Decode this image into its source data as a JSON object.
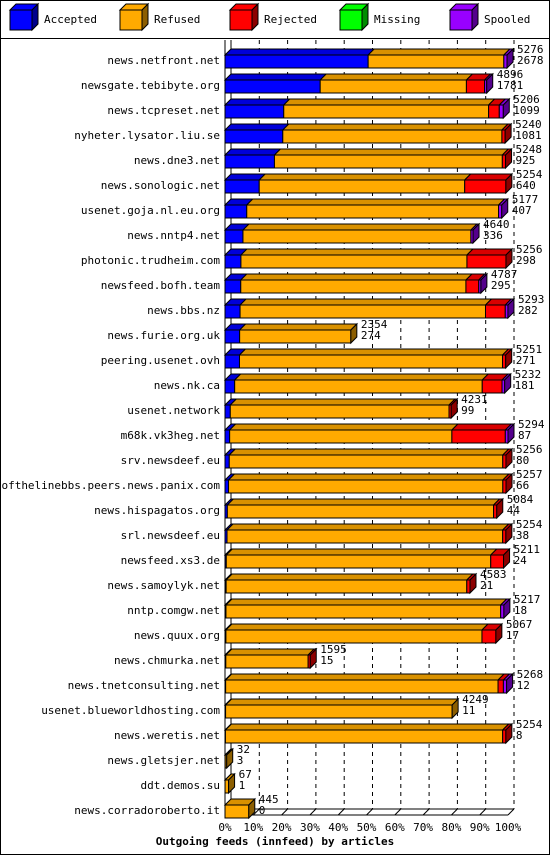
{
  "chart_data": {
    "type": "bar",
    "orientation": "horizontal",
    "stacked": true,
    "x_label": "Outgoing feeds (innfeed) by articles",
    "categories": [
      "news.netfront.net",
      "newsgate.tebibyte.org",
      "news.tcpreset.net",
      "nyheter.lysator.liu.se",
      "news.dne3.net",
      "news.sonologic.net",
      "usenet.goja.nl.eu.org",
      "news.nntp4.net",
      "photonic.trudheim.com",
      "newsfeed.bofh.team",
      "news.bbs.nz",
      "news.furie.org.uk",
      "peering.usenet.ovh",
      "news.nk.ca",
      "usenet.network",
      "m68k.vk3heg.net",
      "srv.newsdeef.eu",
      "endofthelinebbs.peers.news.panix.com",
      "news.hispagatos.org",
      "srl.newsdeef.eu",
      "newsfeed.xs3.de",
      "news.samoylyk.net",
      "nntp.comgw.net",
      "news.quux.org",
      "news.chmurka.net",
      "news.tnetconsulting.net",
      "usenet.blueworldhosting.com",
      "news.weretis.net",
      "news.gletsjer.net",
      "ddt.demos.su",
      "news.corradoroberto.it"
    ],
    "totals": [
      5276,
      4896,
      5206,
      5240,
      5248,
      5254,
      5177,
      4640,
      5256,
      4787,
      5293,
      2354,
      5251,
      5232,
      4231,
      5294,
      5256,
      5257,
      5084,
      5254,
      5211,
      4583,
      5217,
      5067,
      1595,
      5268,
      4249,
      5254,
      32,
      67,
      445
    ],
    "series": [
      {
        "name": "Accepted",
        "color": "#0000ff",
        "values": [
          2678,
          1781,
          1099,
          1081,
          925,
          640,
          407,
          336,
          298,
          295,
          282,
          274,
          271,
          181,
          99,
          87,
          80,
          66,
          44,
          38,
          24,
          21,
          18,
          17,
          15,
          12,
          11,
          8,
          3,
          1,
          0
        ]
      },
      {
        "name": "Refused",
        "color": "#ffaa00",
        "values": [
          2538,
          2735,
          3832,
          4099,
          4263,
          3844,
          4710,
          4264,
          4228,
          4212,
          4591,
          2080,
          4920,
          4631,
          4092,
          4157,
          5116,
          5131,
          4980,
          5156,
          4947,
          4502,
          5139,
          4790,
          1540,
          5096,
          4238,
          5186,
          29,
          66,
          445
        ]
      },
      {
        "name": "Rejected",
        "color": "#ff0000",
        "values": [
          0,
          340,
          200,
          60,
          60,
          770,
          0,
          0,
          730,
          240,
          370,
          0,
          60,
          370,
          40,
          1000,
          60,
          60,
          60,
          60,
          240,
          60,
          0,
          260,
          40,
          100,
          0,
          60,
          0,
          0,
          0
        ]
      },
      {
        "name": "Missing",
        "color": "#00ff00",
        "values": [
          0,
          0,
          0,
          0,
          0,
          0,
          0,
          0,
          0,
          0,
          0,
          0,
          0,
          0,
          0,
          0,
          0,
          0,
          0,
          0,
          0,
          0,
          0,
          0,
          0,
          0,
          0,
          0,
          0,
          0,
          0
        ]
      },
      {
        "name": "Spooled",
        "color": "#9900ff",
        "values": [
          60,
          40,
          75,
          0,
          0,
          0,
          60,
          40,
          0,
          40,
          50,
          0,
          0,
          50,
          0,
          50,
          0,
          0,
          0,
          0,
          0,
          0,
          60,
          0,
          0,
          60,
          0,
          0,
          0,
          0,
          0
        ]
      }
    ],
    "xlim": [
      0,
      5294
    ],
    "xticks": [
      {
        "value": 0,
        "label": "0%"
      },
      {
        "value": 529.4,
        "label": "10%"
      },
      {
        "value": 1058.8,
        "label": "20%"
      },
      {
        "value": 1588.2,
        "label": "30%"
      },
      {
        "value": 2117.6,
        "label": "40%"
      },
      {
        "value": 2647,
        "label": "50%"
      },
      {
        "value": 3176.4,
        "label": "60%"
      },
      {
        "value": 3705.8,
        "label": "70%"
      },
      {
        "value": 4235.2,
        "label": "80%"
      },
      {
        "value": 4764.6,
        "label": "90%"
      },
      {
        "value": 5294,
        "label": "100%"
      }
    ],
    "grid": true
  }
}
